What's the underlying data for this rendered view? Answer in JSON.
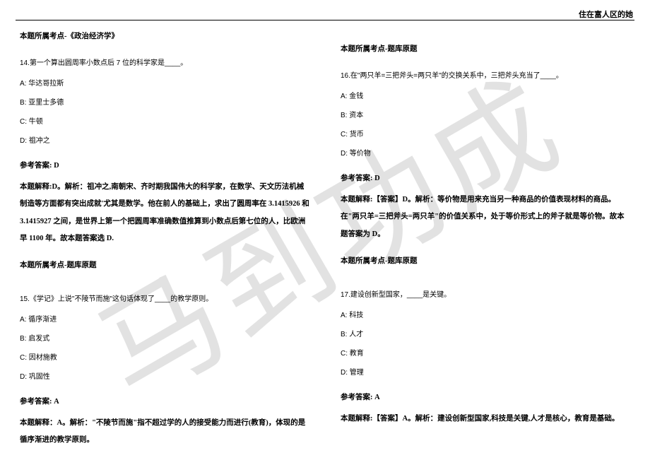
{
  "header": {
    "title": "住在富人区的她"
  },
  "watermark": {
    "text": "马到功成"
  },
  "left_column": {
    "topic1": "本题所属考点-《政治经济学》",
    "q14": {
      "stem": "14.第一个算出圆周率小数点后 7 位的科学家是____。",
      "options": {
        "A": "A: 华达哥拉斯",
        "B": "B: 亚里士多德",
        "C": "C: 牛顿",
        "D": "D: 祖冲之"
      },
      "answer_label": "参考答案: D",
      "explain": "本题解释:D。解析：祖冲之,南朝宋、齐时期我国伟大的科学家，在数学、天文历法机械制造等方面都有突出成就'尤其是数学。他在前人的基础上，求出了圆周率在 3.1415926 和 3.1415927 之间，是世界上第一个把圆周率准确数值推算到小数点后第七位的人，比欧洲早 1100 年。故本题答案选 D.",
      "topic": "本题所属考点-题库原题"
    },
    "q15": {
      "stem": "15.《学记》上说\"不陵节而施\"这句话体现了____的教学原则。",
      "options": {
        "A": "A: 循序渐进",
        "B": "B: 启发式",
        "C": "C: 因材施教",
        "D": "D: 巩固性"
      },
      "answer_label": "参考答案: A",
      "explain": "本题解释：A。解析：\"不陵节而施\"指不超过学的人的接受能力而进行(教育)，体现的是循序渐进的教学原则。"
    }
  },
  "right_column": {
    "topic1": "本题所属考点-题库原题",
    "q16": {
      "stem": "16.在\"两只羊=三把斧头=两只羊\"的交换关系中，三把斧头充当了____。",
      "options": {
        "A": "A: 金钱",
        "B": "B: 资本",
        "C": "C: 货币",
        "D": "D: 等价物"
      },
      "answer_label": "参考答案: D",
      "explain": "本题解释:【答案】D。解析：等价物是用来充当另一种商品的价值表现材料的商品。在\"两只羊=三把斧头=两只羊\"的价值关系中，处于等价形式上的斧子就是等价物。故本题答案为 D。",
      "topic": "本题所属考点-题库原题"
    },
    "q17": {
      "stem": "17.建设创新型国家，____是关键。",
      "options": {
        "A": "A: 科技",
        "B": "B: 人才",
        "C": "C: 教育",
        "D": "D: 管理"
      },
      "answer_label": "参考答案: A",
      "explain": "本题解释:【答案】A。解析：建设创新型国家,科技是关键,人才是核心，教育是基础。"
    }
  }
}
